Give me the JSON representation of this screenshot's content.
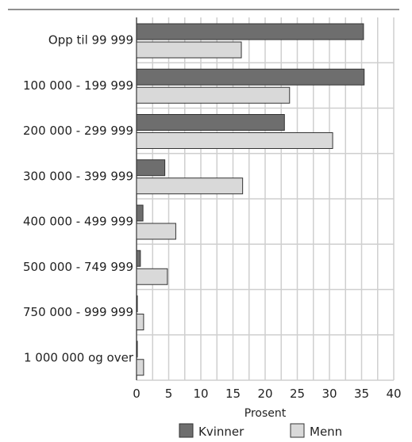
{
  "chart_data": {
    "type": "bar",
    "orientation": "horizontal",
    "categories": [
      "Opp til 99 999",
      "100 000 - 199 999",
      "200 000 - 299 999",
      "300 000 - 399 999",
      "400 000 - 499 999",
      "500 000 - 749 999",
      "750 000 - 999 999",
      "1 000 000 og over"
    ],
    "series": [
      {
        "name": "Kvinner",
        "color": "#6e6e6e",
        "values": [
          35.3,
          35.4,
          23.0,
          4.4,
          1.0,
          0.6,
          0.1,
          0.1
        ]
      },
      {
        "name": "Menn",
        "color": "#d9d9d9",
        "values": [
          16.3,
          23.8,
          30.5,
          16.5,
          6.1,
          4.8,
          1.1,
          1.1
        ]
      }
    ],
    "xlabel": "Prosent",
    "xlim": [
      0,
      40
    ],
    "xticks": [
      0,
      5,
      10,
      15,
      20,
      25,
      30,
      35,
      40
    ],
    "grid": true,
    "legend": "bottom"
  }
}
